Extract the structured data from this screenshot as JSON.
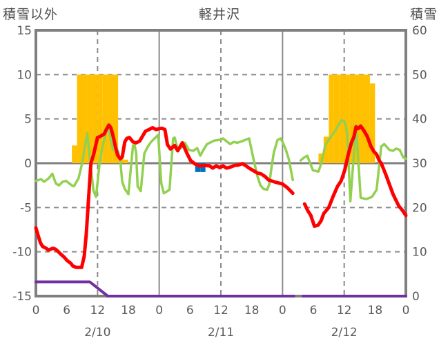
{
  "header": {
    "left_axis_label": "積雪以外",
    "title": "軽井沢",
    "right_axis_label": "積雪"
  },
  "colors": {
    "border_gray": "#7f7f7f",
    "grid_gray": "#8a8a8a",
    "zero_line_gray": "#7f7f7f",
    "tick_text": "#595959",
    "header_text": "#4d4d4d",
    "orange_bar": "#FFC000",
    "blue_bar": "#0070C0",
    "red_line": "#FF0000",
    "green_line": "#92D050",
    "purple_line": "#7030A0"
  },
  "chart_data": {
    "type": "line",
    "title": "軽井沢",
    "x_axis": {
      "hours_total": 72,
      "tick_interval_hours": 6,
      "tick_labels": [
        "0",
        "6",
        "12",
        "18",
        "0",
        "6",
        "12",
        "18",
        "0",
        "6",
        "12",
        "18",
        "0"
      ],
      "date_labels": [
        {
          "hour": 12,
          "label": "2/10"
        },
        {
          "hour": 36,
          "label": "2/11"
        },
        {
          "hour": 60,
          "label": "2/12"
        }
      ]
    },
    "left_axis": {
      "label": "積雪以外",
      "min": -15,
      "max": 15,
      "ticks": [
        15,
        10,
        5,
        0,
        -5,
        -10,
        -15
      ]
    },
    "right_axis": {
      "label": "積雪",
      "min": 0,
      "max": 60,
      "ticks": [
        60,
        50,
        40,
        30,
        20,
        10,
        0
      ]
    },
    "gridlines": {
      "horizontal_dashed_values": [
        10,
        5,
        -5,
        -10
      ],
      "vertical_solid_hours": [
        24,
        48
      ],
      "vertical_dashed_hours": [
        12,
        36,
        60
      ],
      "zero_line": true
    },
    "series": [
      {
        "name": "orange-bars",
        "type": "bar",
        "color": "#FFC000",
        "axis": "left",
        "bars": [
          [
            7,
            2
          ],
          [
            8,
            10
          ],
          [
            9,
            10
          ],
          [
            10,
            10
          ],
          [
            11,
            10
          ],
          [
            12,
            10
          ],
          [
            13,
            10
          ],
          [
            14,
            10
          ],
          [
            15,
            10
          ],
          [
            16,
            0.5
          ],
          [
            17,
            0.4
          ],
          [
            55,
            1.1
          ],
          [
            56,
            3.0
          ],
          [
            57,
            10
          ],
          [
            58,
            10
          ],
          [
            59,
            10
          ],
          [
            60,
            10
          ],
          [
            61,
            10
          ],
          [
            62,
            10
          ],
          [
            63,
            10
          ],
          [
            64,
            10
          ],
          [
            65,
            9
          ]
        ]
      },
      {
        "name": "blue-bars",
        "type": "bar",
        "color": "#0070C0",
        "axis": "left",
        "bars": [
          [
            31,
            -1.0
          ],
          [
            32,
            -1.0
          ]
        ]
      },
      {
        "name": "purple-line",
        "type": "line",
        "color": "#7030A0",
        "width": 4,
        "segments": [
          [
            [
              0,
              -13.4
            ],
            [
              10.5,
              -13.4
            ],
            [
              14,
              -15
            ],
            [
              50.2,
              -15
            ]
          ],
          [
            [
              52,
              -15
            ],
            [
              72,
              -15
            ]
          ]
        ]
      },
      {
        "name": "green-line",
        "type": "line",
        "color": "#92D050",
        "width": 3.5,
        "segments": [
          [
            [
              0,
              -2.0
            ],
            [
              1,
              -1.8
            ],
            [
              1.6,
              -2.1
            ],
            [
              2.5,
              -1.7
            ],
            [
              3.2,
              -1.2
            ],
            [
              3.9,
              -2.3
            ],
            [
              4.5,
              -2.5
            ],
            [
              5.2,
              -2.1
            ],
            [
              5.9,
              -2.0
            ],
            [
              6.3,
              -2.2
            ],
            [
              7,
              -2.5
            ],
            [
              7.4,
              -2.6
            ],
            [
              8.3,
              -1.7
            ],
            [
              9,
              0.0
            ],
            [
              9.5,
              1.8
            ],
            [
              10,
              3.4
            ],
            [
              10.5,
              0.5
            ],
            [
              11.2,
              -3.1
            ],
            [
              11.7,
              -3.8
            ],
            [
              12.4,
              0.0
            ],
            [
              13,
              2.0
            ],
            [
              14,
              4.3
            ],
            [
              15,
              1.5
            ],
            [
              15.5,
              1.9
            ],
            [
              16,
              1.3
            ],
            [
              16.4,
              0.4
            ],
            [
              16.8,
              -2.1
            ],
            [
              17.3,
              -2.9
            ],
            [
              18,
              -3.5
            ],
            [
              18.9,
              2.0
            ],
            [
              19.2,
              2.1
            ],
            [
              19.5,
              1.2
            ],
            [
              19.8,
              -2.6
            ],
            [
              20.4,
              -3.15
            ],
            [
              21.1,
              1.1
            ],
            [
              21.8,
              1.9
            ],
            [
              22.4,
              2.4
            ],
            [
              23.1,
              2.8
            ],
            [
              23.8,
              3.2
            ],
            [
              24.4,
              -2.25
            ],
            [
              24.9,
              -3.4
            ],
            [
              26,
              -3.0
            ],
            [
              26.7,
              2.8
            ],
            [
              27,
              2.9
            ],
            [
              27.6,
              1.6
            ],
            [
              28.3,
              1.75
            ],
            [
              29,
              2.3
            ],
            [
              29.8,
              1.5
            ],
            [
              30.6,
              1.4
            ],
            [
              31.4,
              1.7
            ],
            [
              32,
              0.85
            ],
            [
              32.6,
              1.5
            ],
            [
              33.3,
              2.15
            ],
            [
              34.7,
              2.55
            ],
            [
              36,
              2.65
            ],
            [
              36.4,
              2.8
            ],
            [
              37.8,
              2.15
            ],
            [
              38.5,
              2.4
            ],
            [
              39.2,
              2.3
            ],
            [
              40.2,
              2.5
            ],
            [
              41.5,
              2.8
            ],
            [
              42.3,
              0.6
            ],
            [
              43.1,
              -1.45
            ],
            [
              43.7,
              -2.5
            ],
            [
              44.3,
              -2.9
            ],
            [
              45,
              -3.0
            ],
            [
              45.4,
              -2.4
            ],
            [
              45.9,
              -0.3
            ],
            [
              46.3,
              1.2
            ],
            [
              47,
              2.6
            ],
            [
              47.6,
              2.8
            ],
            [
              48,
              2.4
            ],
            [
              48.6,
              1.6
            ],
            [
              49.2,
              0.5
            ],
            [
              49.7,
              -1.0
            ],
            [
              50,
              -1.9
            ]
          ],
          [
            [
              51.5,
              0.3
            ],
            [
              52.1,
              0.6
            ],
            [
              52.8,
              0.85
            ],
            [
              53.9,
              -0.8
            ],
            [
              55,
              -0.95
            ],
            [
              55.6,
              0.1
            ],
            [
              56.3,
              2.0
            ],
            [
              57,
              2.65
            ],
            [
              58.3,
              3.7
            ],
            [
              59.4,
              4.85
            ],
            [
              60.1,
              4.7
            ],
            [
              60.6,
              3.3
            ],
            [
              61.2,
              -4.3
            ],
            [
              62.3,
              4.3
            ],
            [
              63.2,
              -3.9
            ],
            [
              64.3,
              -4.05
            ],
            [
              65.4,
              -3.8
            ],
            [
              66.3,
              -3.0
            ],
            [
              67.2,
              1.9
            ],
            [
              67.8,
              2.15
            ],
            [
              68.8,
              1.5
            ],
            [
              69.5,
              1.4
            ],
            [
              70.1,
              1.65
            ],
            [
              70.8,
              1.5
            ],
            [
              71.5,
              0.65
            ],
            [
              72,
              0.5
            ]
          ]
        ]
      },
      {
        "name": "red-line",
        "type": "line",
        "color": "#FF0000",
        "width": 5,
        "segments": [
          [
            [
              0,
              -7.3
            ],
            [
              0.4,
              -8.1
            ],
            [
              0.9,
              -9.0
            ],
            [
              1.3,
              -9.4
            ],
            [
              2,
              -9.6
            ],
            [
              2.4,
              -9.8
            ],
            [
              2.9,
              -9.7
            ],
            [
              3.3,
              -9.6
            ],
            [
              3.8,
              -9.7
            ],
            [
              4.2,
              -9.9
            ],
            [
              4.9,
              -10.3
            ],
            [
              5.5,
              -10.6
            ],
            [
              6.1,
              -11.0
            ],
            [
              6.8,
              -11.3
            ],
            [
              7.2,
              -11.6
            ],
            [
              7.8,
              -11.75
            ],
            [
              8.9,
              -11.75
            ],
            [
              9.4,
              -10.5
            ],
            [
              9.8,
              -8.0
            ],
            [
              10.2,
              -4.5
            ],
            [
              10.7,
              0.0
            ],
            [
              11.2,
              0.9
            ],
            [
              12,
              2.9
            ],
            [
              12.6,
              3.05
            ],
            [
              13.3,
              3.3
            ],
            [
              13.7,
              3.8
            ],
            [
              14.2,
              4.3
            ],
            [
              14.6,
              4.0
            ],
            [
              15.1,
              2.9
            ],
            [
              15.5,
              1.8
            ],
            [
              15.9,
              0.9
            ],
            [
              16.4,
              0.5
            ],
            [
              16.8,
              0.7
            ],
            [
              17.3,
              2.4
            ],
            [
              17.7,
              2.8
            ],
            [
              18.2,
              2.9
            ],
            [
              18.9,
              2.4
            ],
            [
              19.5,
              2.3
            ],
            [
              20.2,
              2.5
            ],
            [
              21.3,
              3.6
            ],
            [
              22,
              3.8
            ],
            [
              22.7,
              4.0
            ],
            [
              23.4,
              3.8
            ],
            [
              24,
              3.9
            ],
            [
              24.5,
              3.95
            ],
            [
              25.1,
              3.8
            ],
            [
              25.6,
              2.1
            ],
            [
              26.2,
              1.6
            ],
            [
              27,
              2.0
            ],
            [
              27.6,
              1.4
            ],
            [
              28.5,
              2.3
            ],
            [
              29.4,
              1.1
            ],
            [
              30.1,
              0.3
            ],
            [
              31,
              -0.1
            ],
            [
              31.9,
              -0.3
            ],
            [
              32.9,
              -0.25
            ],
            [
              33.8,
              -0.3
            ],
            [
              34.4,
              -0.55
            ],
            [
              35.1,
              -0.3
            ],
            [
              35.8,
              -0.5
            ],
            [
              36.4,
              -0.3
            ],
            [
              37.1,
              -0.55
            ],
            [
              37.8,
              -0.45
            ],
            [
              38.7,
              -0.25
            ],
            [
              39.4,
              -0.2
            ],
            [
              40.2,
              -0.05
            ],
            [
              40.9,
              -0.3
            ],
            [
              41.5,
              -0.55
            ],
            [
              42.2,
              -0.8
            ],
            [
              43.1,
              -1.1
            ],
            [
              43.8,
              -1.2
            ],
            [
              44.6,
              -1.5
            ],
            [
              45.3,
              -1.9
            ],
            [
              46.7,
              -2.15
            ],
            [
              48,
              -2.35
            ],
            [
              48.9,
              -2.75
            ],
            [
              49.6,
              -3.15
            ],
            [
              50,
              -3.4
            ]
          ],
          [
            [
              52.3,
              -4.6
            ],
            [
              52.9,
              -5.35
            ],
            [
              53.5,
              -5.9
            ],
            [
              54.2,
              -7.1
            ],
            [
              54.9,
              -7.0
            ],
            [
              55.5,
              -6.5
            ],
            [
              56,
              -5.7
            ],
            [
              57,
              -5.0
            ],
            [
              57.8,
              -3.8
            ],
            [
              58.7,
              -2.6
            ],
            [
              59.4,
              -2.0
            ],
            [
              60.1,
              -0.8
            ],
            [
              60.8,
              1.0
            ],
            [
              61.4,
              2.3
            ],
            [
              61.9,
              3.0
            ],
            [
              62.3,
              4.1
            ],
            [
              62.7,
              3.9
            ],
            [
              63.2,
              4.2
            ],
            [
              63.8,
              3.7
            ],
            [
              64.5,
              3.0
            ],
            [
              65.2,
              1.9
            ],
            [
              65.8,
              1.3
            ],
            [
              66.3,
              1.0
            ],
            [
              66.8,
              0.3
            ],
            [
              67.2,
              0.0
            ],
            [
              68.1,
              -1.3
            ],
            [
              68.8,
              -2.4
            ],
            [
              69.5,
              -3.5
            ],
            [
              70.6,
              -4.8
            ],
            [
              71.3,
              -5.3
            ],
            [
              72,
              -5.9
            ]
          ]
        ]
      }
    ]
  }
}
